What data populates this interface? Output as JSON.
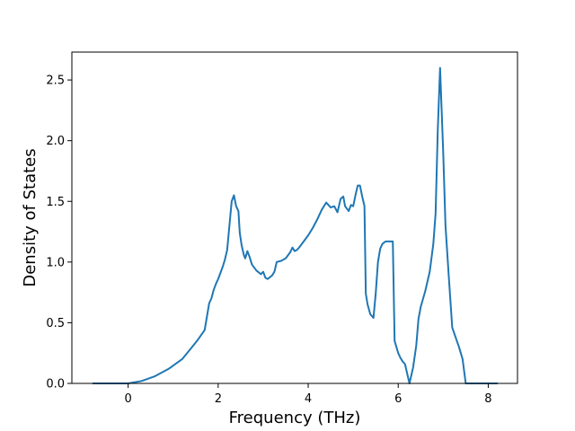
{
  "chart_data": {
    "type": "line",
    "title": "",
    "xlabel": "Frequency (THz)",
    "ylabel": "Density of States",
    "xlim": [
      -1.25,
      8.65
    ],
    "ylim": [
      0,
      2.73
    ],
    "xticks": [
      {
        "value": 0,
        "label": "0"
      },
      {
        "value": 2,
        "label": "2"
      },
      {
        "value": 4,
        "label": "4"
      },
      {
        "value": 6,
        "label": "6"
      },
      {
        "value": 8,
        "label": "8"
      }
    ],
    "yticks": [
      {
        "value": 0.0,
        "label": "0.0"
      },
      {
        "value": 0.5,
        "label": "0.5"
      },
      {
        "value": 1.0,
        "label": "1.0"
      },
      {
        "value": 1.5,
        "label": "1.5"
      },
      {
        "value": 2.0,
        "label": "2.0"
      },
      {
        "value": 2.5,
        "label": "2.5"
      }
    ],
    "grid": false,
    "legend": "none",
    "series": [
      {
        "color": "#1f77b4",
        "x": [
          -0.78,
          -0.4,
          0.0,
          0.3,
          0.6,
          0.9,
          1.2,
          1.4,
          1.55,
          1.7,
          1.8,
          1.85,
          1.9,
          1.95,
          2.0,
          2.1,
          2.15,
          2.2,
          2.25,
          2.3,
          2.35,
          2.4,
          2.45,
          2.48,
          2.52,
          2.57,
          2.6,
          2.65,
          2.7,
          2.75,
          2.85,
          2.95,
          3.0,
          3.05,
          3.1,
          3.2,
          3.25,
          3.3,
          3.4,
          3.5,
          3.6,
          3.65,
          3.7,
          3.75,
          3.8,
          3.9,
          4.0,
          4.1,
          4.2,
          4.3,
          4.4,
          4.5,
          4.58,
          4.65,
          4.72,
          4.78,
          4.82,
          4.9,
          4.95,
          5.0,
          5.05,
          5.1,
          5.15,
          5.2,
          5.25,
          5.28,
          5.32,
          5.38,
          5.45,
          5.5,
          5.55,
          5.6,
          5.65,
          5.72,
          5.8,
          5.88,
          5.92,
          6.0,
          6.05,
          6.1,
          6.15,
          6.25,
          6.33,
          6.4,
          6.45,
          6.5,
          6.6,
          6.7,
          6.78,
          6.83,
          6.88,
          6.93,
          7.0,
          7.05,
          7.12,
          7.2,
          7.35,
          7.43,
          7.5,
          7.8,
          8.2
        ],
        "y": [
          0.0,
          0.0,
          0.0,
          0.02,
          0.06,
          0.12,
          0.2,
          0.29,
          0.36,
          0.44,
          0.66,
          0.7,
          0.77,
          0.82,
          0.86,
          0.96,
          1.02,
          1.1,
          1.3,
          1.5,
          1.55,
          1.46,
          1.42,
          1.24,
          1.14,
          1.06,
          1.03,
          1.09,
          1.04,
          0.98,
          0.93,
          0.9,
          0.92,
          0.87,
          0.86,
          0.89,
          0.92,
          1.0,
          1.01,
          1.03,
          1.08,
          1.12,
          1.09,
          1.1,
          1.12,
          1.17,
          1.22,
          1.28,
          1.35,
          1.43,
          1.49,
          1.45,
          1.46,
          1.41,
          1.52,
          1.54,
          1.46,
          1.42,
          1.47,
          1.46,
          1.55,
          1.63,
          1.63,
          1.54,
          1.46,
          0.74,
          0.65,
          0.57,
          0.54,
          0.74,
          1.0,
          1.11,
          1.15,
          1.17,
          1.17,
          1.17,
          0.35,
          0.25,
          0.21,
          0.18,
          0.16,
          0.0,
          0.13,
          0.31,
          0.53,
          0.63,
          0.76,
          0.92,
          1.15,
          1.4,
          2.1,
          2.6,
          1.9,
          1.3,
          0.9,
          0.46,
          0.3,
          0.2,
          0.0,
          0.0,
          0.0
        ]
      }
    ]
  }
}
